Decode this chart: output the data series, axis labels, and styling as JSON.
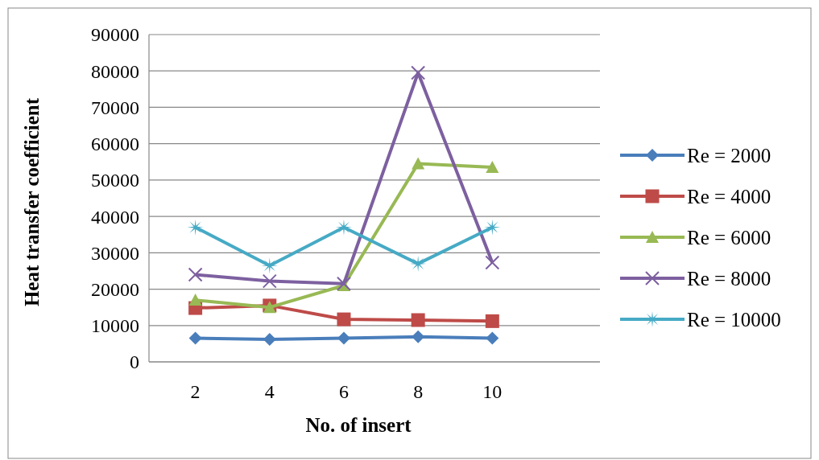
{
  "chart_data": {
    "type": "line",
    "xlabel": "No. of insert",
    "ylabel": "Heat transfer coefficient",
    "x": [
      2,
      4,
      6,
      8,
      10
    ],
    "xlim": [
      0.75,
      12.9
    ],
    "xticks": [
      2,
      4,
      6,
      8,
      10
    ],
    "ylim": [
      0,
      90000
    ],
    "yticks": [
      0,
      10000,
      20000,
      30000,
      40000,
      50000,
      60000,
      70000,
      80000,
      90000
    ],
    "grid": "y",
    "legend": "right",
    "series": [
      {
        "name": "Re = 2000",
        "color": "#4a7ebb",
        "marker": "diamond",
        "values": [
          6500,
          6200,
          6500,
          6900,
          6500
        ]
      },
      {
        "name": "Re = 4000",
        "color": "#be4b48",
        "marker": "square",
        "values": [
          14800,
          15500,
          11700,
          11500,
          11200
        ]
      },
      {
        "name": "Re = 6000",
        "color": "#98b954",
        "marker": "triangle",
        "values": [
          17000,
          15000,
          21000,
          54500,
          53500
        ]
      },
      {
        "name": "Re = 8000",
        "color": "#7d60a0",
        "marker": "cross",
        "values": [
          24000,
          22200,
          21500,
          79500,
          27300
        ]
      },
      {
        "name": "Re = 10000",
        "color": "#46aac5",
        "marker": "star",
        "values": [
          37000,
          26500,
          37000,
          27000,
          37000
        ]
      }
    ]
  }
}
